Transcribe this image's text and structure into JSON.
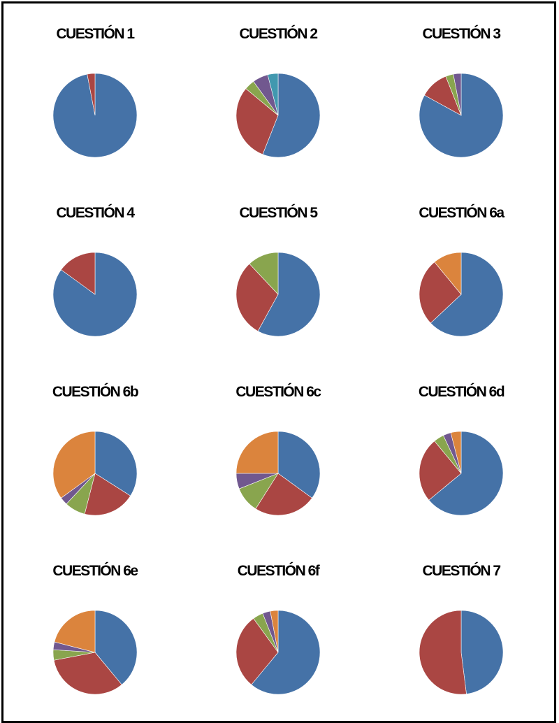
{
  "colors": {
    "blue": "#4572A7",
    "red": "#AA4643",
    "green": "#89A54E",
    "purple": "#71588F",
    "cyan": "#4198AF",
    "orange": "#DB843D"
  },
  "chart_data": [
    {
      "type": "pie",
      "title": "CUESTIÓN 1",
      "values": [
        97,
        3
      ],
      "colors": [
        "blue",
        "red"
      ]
    },
    {
      "type": "pie",
      "title": "CUESTIÓN 2",
      "values": [
        56,
        30,
        4,
        6,
        4
      ],
      "colors": [
        "blue",
        "red",
        "green",
        "purple",
        "cyan"
      ]
    },
    {
      "type": "pie",
      "title": "CUESTIÓN 3",
      "values": [
        83,
        11,
        3,
        3
      ],
      "colors": [
        "blue",
        "red",
        "green",
        "purple"
      ]
    },
    {
      "type": "pie",
      "title": "CUESTIÓN 4",
      "values": [
        85,
        15
      ],
      "colors": [
        "blue",
        "red"
      ]
    },
    {
      "type": "pie",
      "title": "CUESTIÓN 5",
      "values": [
        58,
        30,
        12
      ],
      "colors": [
        "blue",
        "red",
        "green"
      ]
    },
    {
      "type": "pie",
      "title": "CUESTIÓN 6a",
      "values": [
        63,
        26,
        11
      ],
      "colors": [
        "blue",
        "red",
        "orange"
      ]
    },
    {
      "type": "pie",
      "title": "CUESTIÓN 6b",
      "values": [
        34,
        20,
        8,
        3,
        35
      ],
      "colors": [
        "blue",
        "red",
        "green",
        "purple",
        "orange"
      ]
    },
    {
      "type": "pie",
      "title": "CUESTIÓN 6c",
      "values": [
        35,
        24,
        10,
        6,
        25
      ],
      "colors": [
        "blue",
        "red",
        "green",
        "purple",
        "orange"
      ]
    },
    {
      "type": "pie",
      "title": "CUESTIÓN 6d",
      "values": [
        64,
        25,
        4,
        3,
        4
      ],
      "colors": [
        "blue",
        "red",
        "green",
        "purple",
        "orange"
      ]
    },
    {
      "type": "pie",
      "title": "CUESTIÓN 6e",
      "values": [
        39,
        33,
        4,
        3,
        21
      ],
      "colors": [
        "blue",
        "red",
        "green",
        "purple",
        "orange"
      ]
    },
    {
      "type": "pie",
      "title": "CUESTIÓN 6f",
      "values": [
        61,
        29,
        4,
        3,
        3
      ],
      "colors": [
        "blue",
        "red",
        "green",
        "purple",
        "orange"
      ]
    },
    {
      "type": "pie",
      "title": "CUESTIÓN  7",
      "values": [
        48,
        52
      ],
      "colors": [
        "blue",
        "red"
      ]
    }
  ]
}
